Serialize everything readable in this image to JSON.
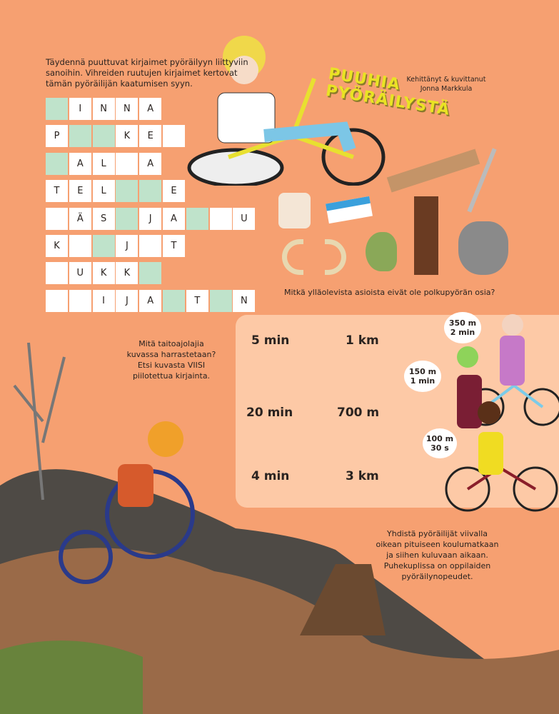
{
  "crossword": {
    "instructions": "Täydennä puuttuvat kirjaimet pyöräilyyn liittyviin sanoihin. Vihreiden ruutujen kirjaimet kertovat tämän pyöräilijän kaatumisen syyn.",
    "rows": [
      [
        "#",
        "I",
        "N",
        "N",
        "A"
      ],
      [
        "P",
        "#",
        "#",
        "K",
        "E",
        ""
      ],
      [
        "#",
        "A",
        "L",
        "",
        "A"
      ],
      [
        "T",
        "E",
        "L",
        "#",
        "#",
        "E"
      ],
      [
        "",
        "Ä",
        "S",
        "#",
        "J",
        "A",
        "#",
        "",
        "U"
      ],
      [
        "K",
        "",
        "#",
        "J",
        "",
        "T"
      ],
      [
        "",
        "U",
        "K",
        "K",
        "#"
      ],
      [
        "",
        "",
        "I",
        "J",
        "A",
        "#",
        "T",
        "#",
        "N"
      ]
    ],
    "green_color": "#bfe3cb"
  },
  "header": {
    "title_line1": "PUUHIA",
    "title_line2": "PYÖRÄILYSTÄ",
    "credit_line1": "Kehittänyt & kuvittanut",
    "credit_line2": "Jonna Markkula"
  },
  "objects_question": "Mitkä ylläolevista asioista eivät ole polkupyörän osia?",
  "objects": [
    "toilet-roll",
    "eraser",
    "wooden-plank",
    "fork",
    "horns",
    "bird",
    "tree-trunk",
    "cat"
  ],
  "skill_question": {
    "line1": "Mitä taitoajolajia",
    "line2": "kuvassa harrastetaan?",
    "line3": "Etsi kuvasta VIISI",
    "line4": "piilotettua kirjainta."
  },
  "matching": {
    "times": [
      "5 min",
      "20 min",
      "4 min"
    ],
    "distances": [
      "1 km",
      "700 m",
      "3 km"
    ],
    "bubbles": [
      {
        "distance": "350 m",
        "time": "2 min"
      },
      {
        "distance": "150 m",
        "time": "1 min"
      },
      {
        "distance": "100 m",
        "time": "30 s"
      }
    ],
    "instructions": {
      "line1": "Yhdistä pyöräilijät viivalla",
      "line2": "oikean pituiseen koulumatkaan",
      "line3": "ja siihen kuluvaan aikaan.",
      "line4": "Puhekuplissa on oppilaiden",
      "line5": "pyöräilynopeudet."
    }
  },
  "colors": {
    "background": "#f6a071",
    "panel": "#fdc9a6",
    "title": "#e9e324"
  }
}
